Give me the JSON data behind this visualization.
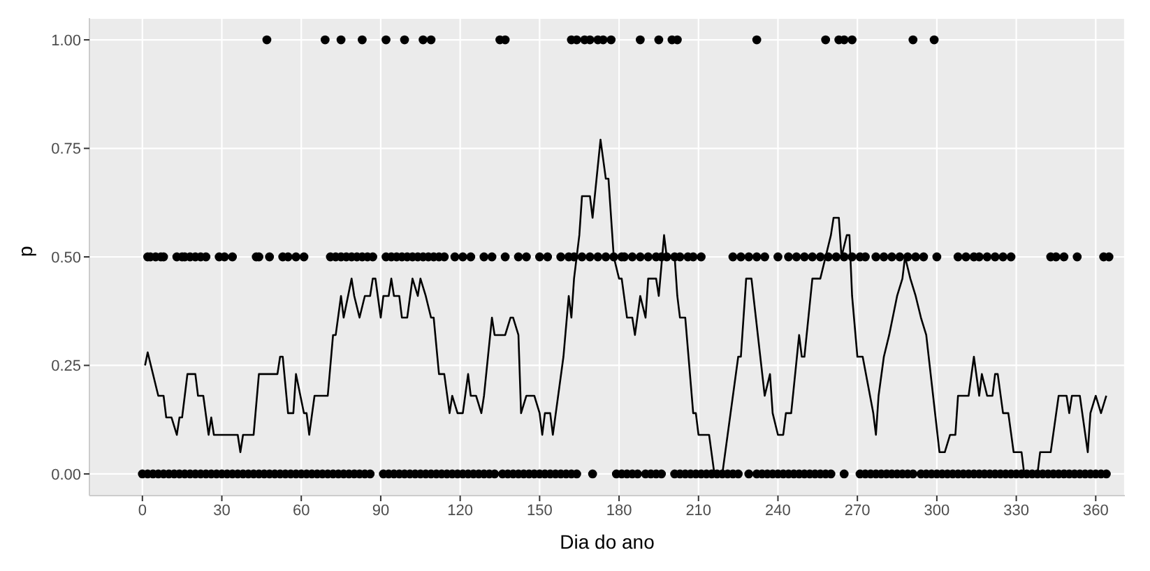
{
  "chart_data": {
    "type": "scatter",
    "xlabel": "Dia do ano",
    "ylabel": "p",
    "xlim": [
      -20,
      371
    ],
    "ylim": [
      -0.05,
      1.05
    ],
    "xticks": [
      0,
      30,
      60,
      90,
      120,
      150,
      180,
      210,
      240,
      270,
      300,
      330,
      360
    ],
    "yticks": [
      {
        "value": 0,
        "label": "0.00"
      },
      {
        "value": 0.25,
        "label": "0.25"
      },
      {
        "value": 0.5,
        "label": "0.50"
      },
      {
        "value": 0.75,
        "label": "0.75"
      },
      {
        "value": 1,
        "label": "1.00"
      }
    ],
    "grid": true,
    "series": [
      {
        "marker": "circle",
        "color": "#000000",
        "x": [
          47,
          69,
          75,
          83,
          92,
          99,
          106,
          109,
          135,
          137,
          162,
          164,
          167,
          169,
          172,
          174,
          177,
          188,
          195,
          200,
          202,
          232,
          258,
          263,
          265,
          268,
          291,
          299
        ],
        "values": [
          1,
          1,
          1,
          1,
          1,
          1,
          1,
          1,
          1,
          1,
          1,
          1,
          1,
          1,
          1,
          1,
          1,
          1,
          1,
          1,
          1,
          1,
          1,
          1,
          1,
          1,
          1,
          1
        ]
      },
      {
        "marker": "circle",
        "color": "#000000",
        "x": [
          2,
          3,
          5,
          7,
          8,
          13,
          15,
          16,
          18,
          20,
          22,
          24,
          29,
          31,
          34,
          43,
          44,
          48,
          53,
          55,
          58,
          61,
          71,
          73,
          75,
          77,
          79,
          81,
          83,
          85,
          87,
          92,
          94,
          96,
          98,
          100,
          102,
          104,
          106,
          108,
          110,
          112,
          114,
          118,
          121,
          124,
          129,
          132,
          137,
          142,
          145,
          150,
          153,
          158,
          161,
          163,
          166,
          169,
          172,
          175,
          178,
          181,
          182,
          185,
          188,
          191,
          194,
          196,
          198,
          201,
          203,
          206,
          208,
          211,
          223,
          226,
          229,
          232,
          235,
          240,
          244,
          247,
          250,
          253,
          256,
          259,
          262,
          265,
          268,
          271,
          273,
          277,
          280,
          283,
          286,
          289,
          292,
          295,
          300,
          308,
          311,
          314,
          316,
          319,
          322,
          325,
          328,
          343,
          345,
          348,
          353,
          363,
          365
        ],
        "values": [
          0.5,
          0.5,
          0.5,
          0.5,
          0.5,
          0.5,
          0.5,
          0.5,
          0.5,
          0.5,
          0.5,
          0.5,
          0.5,
          0.5,
          0.5,
          0.5,
          0.5,
          0.5,
          0.5,
          0.5,
          0.5,
          0.5,
          0.5,
          0.5,
          0.5,
          0.5,
          0.5,
          0.5,
          0.5,
          0.5,
          0.5,
          0.5,
          0.5,
          0.5,
          0.5,
          0.5,
          0.5,
          0.5,
          0.5,
          0.5,
          0.5,
          0.5,
          0.5,
          0.5,
          0.5,
          0.5,
          0.5,
          0.5,
          0.5,
          0.5,
          0.5,
          0.5,
          0.5,
          0.5,
          0.5,
          0.5,
          0.5,
          0.5,
          0.5,
          0.5,
          0.5,
          0.5,
          0.5,
          0.5,
          0.5,
          0.5,
          0.5,
          0.5,
          0.5,
          0.5,
          0.5,
          0.5,
          0.5,
          0.5,
          0.5,
          0.5,
          0.5,
          0.5,
          0.5,
          0.5,
          0.5,
          0.5,
          0.5,
          0.5,
          0.5,
          0.5,
          0.5,
          0.5,
          0.5,
          0.5,
          0.5,
          0.5,
          0.5,
          0.5,
          0.5,
          0.5,
          0.5,
          0.5,
          0.5,
          0.5,
          0.5,
          0.5,
          0.5,
          0.5,
          0.5,
          0.5,
          0.5,
          0.5,
          0.5,
          0.5,
          0.5,
          0.5,
          0.5
        ]
      },
      {
        "marker": "circle",
        "color": "#000000",
        "x": [
          0,
          2,
          4,
          6,
          8,
          10,
          12,
          14,
          16,
          18,
          20,
          22,
          24,
          26,
          28,
          30,
          32,
          34,
          36,
          38,
          40,
          42,
          44,
          46,
          48,
          50,
          52,
          54,
          56,
          58,
          60,
          62,
          64,
          66,
          68,
          70,
          72,
          74,
          76,
          78,
          80,
          82,
          84,
          86,
          91,
          93,
          95,
          97,
          99,
          101,
          103,
          105,
          107,
          109,
          111,
          113,
          115,
          117,
          119,
          121,
          123,
          125,
          127,
          129,
          131,
          133,
          136,
          138,
          140,
          142,
          144,
          146,
          148,
          150,
          152,
          154,
          156,
          158,
          160,
          162,
          164,
          170,
          179,
          181,
          183,
          185,
          187,
          190,
          192,
          194,
          196,
          201,
          203,
          205,
          207,
          209,
          211,
          213,
          215,
          217,
          219,
          221,
          223,
          225,
          229,
          232,
          234,
          236,
          238,
          240,
          242,
          244,
          246,
          248,
          250,
          252,
          254,
          256,
          258,
          260,
          265,
          271,
          273,
          275,
          277,
          279,
          281,
          283,
          285,
          287,
          289,
          291,
          294,
          296,
          298,
          300,
          302,
          304,
          306,
          308,
          310,
          312,
          314,
          316,
          318,
          320,
          322,
          324,
          326,
          328,
          330,
          332,
          334,
          336,
          338,
          340,
          342,
          344,
          346,
          348,
          350,
          352,
          354,
          356,
          358,
          360,
          362,
          364
        ],
        "values": [
          0,
          0,
          0,
          0,
          0,
          0,
          0,
          0,
          0,
          0,
          0,
          0,
          0,
          0,
          0,
          0,
          0,
          0,
          0,
          0,
          0,
          0,
          0,
          0,
          0,
          0,
          0,
          0,
          0,
          0,
          0,
          0,
          0,
          0,
          0,
          0,
          0,
          0,
          0,
          0,
          0,
          0,
          0,
          0,
          0,
          0,
          0,
          0,
          0,
          0,
          0,
          0,
          0,
          0,
          0,
          0,
          0,
          0,
          0,
          0,
          0,
          0,
          0,
          0,
          0,
          0,
          0,
          0,
          0,
          0,
          0,
          0,
          0,
          0,
          0,
          0,
          0,
          0,
          0,
          0,
          0,
          0,
          0,
          0,
          0,
          0,
          0,
          0,
          0,
          0,
          0,
          0,
          0,
          0,
          0,
          0,
          0,
          0,
          0,
          0,
          0,
          0,
          0,
          0,
          0,
          0,
          0,
          0,
          0,
          0,
          0,
          0,
          0,
          0,
          0,
          0,
          0,
          0,
          0,
          0,
          0,
          0,
          0,
          0,
          0,
          0,
          0,
          0,
          0,
          0,
          0,
          0,
          0,
          0,
          0,
          0,
          0,
          0,
          0,
          0,
          0,
          0,
          0,
          0,
          0,
          0,
          0,
          0,
          0,
          0,
          0,
          0,
          0,
          0,
          0,
          0,
          0,
          0,
          0,
          0,
          0,
          0,
          0,
          0,
          0,
          0,
          0,
          0
        ]
      },
      {
        "type": "line",
        "marker": "none",
        "line_style": "solid",
        "color": "#000000",
        "x": [
          1,
          2,
          6,
          8,
          9,
          11,
          13,
          14,
          15,
          17,
          20,
          21,
          23,
          25,
          26,
          27,
          36,
          37,
          38,
          42,
          44,
          51,
          52,
          53,
          55,
          57,
          58,
          61,
          62,
          63,
          65,
          70,
          72,
          73,
          75,
          76,
          79,
          80,
          82,
          84,
          86,
          87,
          88,
          90,
          91,
          93,
          94,
          95,
          97,
          98,
          100,
          102,
          104,
          105,
          107,
          109,
          110,
          112,
          114,
          116,
          117,
          119,
          121,
          123,
          124,
          126,
          128,
          129,
          132,
          133,
          137,
          139,
          140,
          142,
          143,
          145,
          148,
          150,
          151,
          152,
          154,
          155,
          157,
          159,
          161,
          162,
          163,
          165,
          166,
          169,
          170,
          173,
          175,
          176,
          178,
          180,
          181,
          183,
          185,
          186,
          188,
          190,
          191,
          194,
          195,
          197,
          198,
          201,
          202,
          203,
          205,
          208,
          209,
          210,
          214,
          216,
          219,
          225,
          226,
          228,
          230,
          235,
          237,
          238,
          240,
          242,
          243,
          245,
          248,
          249,
          250,
          253,
          256,
          258,
          260,
          261,
          263,
          264,
          266,
          267,
          268,
          270,
          272,
          276,
          277,
          278,
          280,
          282,
          285,
          287,
          288,
          290,
          292,
          294,
          296,
          301,
          303,
          305,
          307,
          308,
          312,
          314,
          316,
          317,
          319,
          321,
          322,
          323,
          325,
          327,
          329,
          332,
          333,
          338,
          339,
          343,
          346,
          349,
          350,
          351,
          354,
          357,
          358,
          360,
          362,
          364
        ],
        "values": [
          0.25,
          0.28,
          0.18,
          0.18,
          0.13,
          0.13,
          0.09,
          0.13,
          0.13,
          0.23,
          0.23,
          0.18,
          0.18,
          0.09,
          0.13,
          0.09,
          0.09,
          0.05,
          0.09,
          0.09,
          0.23,
          0.23,
          0.27,
          0.27,
          0.14,
          0.14,
          0.23,
          0.14,
          0.14,
          0.09,
          0.18,
          0.18,
          0.32,
          0.32,
          0.41,
          0.36,
          0.45,
          0.41,
          0.36,
          0.41,
          0.41,
          0.45,
          0.45,
          0.36,
          0.41,
          0.41,
          0.45,
          0.41,
          0.41,
          0.36,
          0.36,
          0.45,
          0.41,
          0.45,
          0.41,
          0.36,
          0.36,
          0.23,
          0.23,
          0.14,
          0.18,
          0.14,
          0.14,
          0.23,
          0.18,
          0.18,
          0.14,
          0.18,
          0.36,
          0.32,
          0.32,
          0.36,
          0.36,
          0.32,
          0.14,
          0.18,
          0.18,
          0.14,
          0.09,
          0.14,
          0.14,
          0.09,
          0.18,
          0.27,
          0.41,
          0.36,
          0.45,
          0.55,
          0.64,
          0.64,
          0.59,
          0.77,
          0.68,
          0.68,
          0.5,
          0.45,
          0.45,
          0.36,
          0.36,
          0.32,
          0.41,
          0.36,
          0.45,
          0.45,
          0.41,
          0.55,
          0.5,
          0.5,
          0.41,
          0.36,
          0.36,
          0.14,
          0.14,
          0.09,
          0.09,
          0,
          0,
          0.27,
          0.27,
          0.45,
          0.45,
          0.18,
          0.23,
          0.14,
          0.09,
          0.09,
          0.14,
          0.14,
          0.32,
          0.27,
          0.27,
          0.45,
          0.45,
          0.5,
          0.55,
          0.59,
          0.59,
          0.5,
          0.55,
          0.55,
          0.41,
          0.27,
          0.27,
          0.14,
          0.09,
          0.18,
          0.27,
          0.32,
          0.41,
          0.45,
          0.5,
          0.45,
          0.41,
          0.36,
          0.32,
          0.05,
          0.05,
          0.09,
          0.09,
          0.18,
          0.18,
          0.27,
          0.18,
          0.23,
          0.18,
          0.18,
          0.23,
          0.23,
          0.14,
          0.14,
          0.05,
          0.05,
          0,
          0,
          0.05,
          0.05,
          0.18,
          0.18,
          0.14,
          0.18,
          0.18,
          0.05,
          0.14,
          0.18,
          0.14,
          0.18
        ]
      }
    ]
  }
}
